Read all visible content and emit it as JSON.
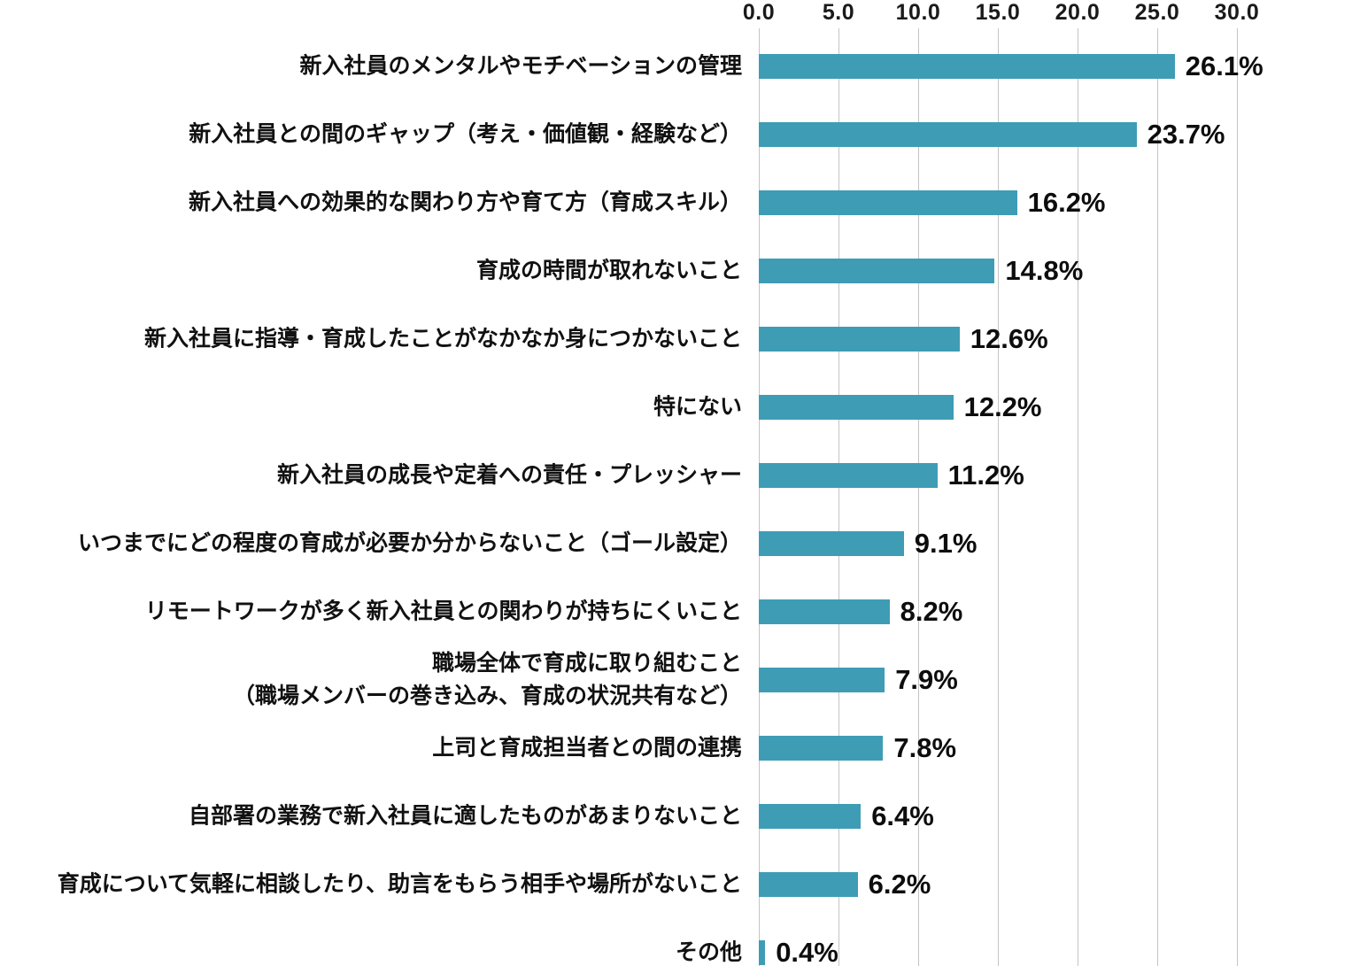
{
  "chart_data": {
    "type": "bar",
    "orientation": "horizontal",
    "title": "",
    "xlabel": "",
    "ylabel": "",
    "xlim": [
      0,
      30
    ],
    "grid": true,
    "legend": false,
    "bar_color": "#3E9CB5",
    "grid_color": "#c4c4c4",
    "text_color": "#111111",
    "x_ticks": [
      "0.0",
      "5.0",
      "10.0",
      "15.0",
      "20.0",
      "25.0",
      "30.0"
    ],
    "x_tick_values": [
      0,
      5,
      10,
      15,
      20,
      25,
      30
    ],
    "categories": [
      "新入社員のメンタルやモチベーションの管理",
      "新入社員との間のギャップ（考え・価値観・経験など）",
      "新入社員への効果的な関わり方や育て方（育成スキル）",
      "育成の時間が取れないこと",
      "新入社員に指導・育成したことがなかなか身につかないこと",
      "特にない",
      "新入社員の成長や定着への責任・プレッシャー",
      "いつまでにどの程度の育成が必要か分からないこと（ゴール設定）",
      "リモートワークが多く新入社員との関わりが持ちにくいこと",
      [
        "職場全体で育成に取り組むこと",
        "（職場メンバーの巻き込み、育成の状況共有など）"
      ],
      "上司と育成担当者との間の連携",
      "自部署の業務で新入社員に適したものがあまりないこと",
      "育成について気軽に相談したり、助言をもらう相手や場所がないこと",
      "その他"
    ],
    "values": [
      26.1,
      23.7,
      16.2,
      14.8,
      12.6,
      12.2,
      11.2,
      9.1,
      8.2,
      7.9,
      7.8,
      6.4,
      6.2,
      0.4
    ],
    "value_labels": [
      "26.1%",
      "23.7%",
      "16.2%",
      "14.8%",
      "12.6%",
      "12.2%",
      "11.2%",
      "9.1%",
      "8.2%",
      "7.9%",
      "7.8%",
      "6.4%",
      "6.2%",
      "0.4%"
    ]
  }
}
